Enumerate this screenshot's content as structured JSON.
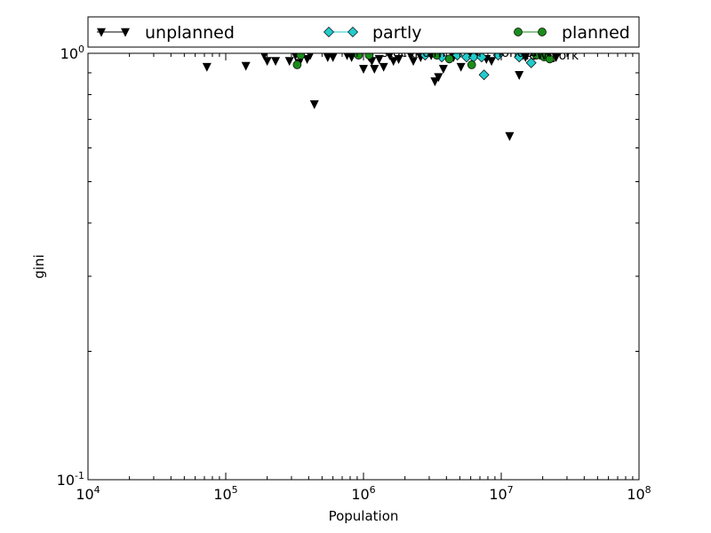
{
  "chart_data": {
    "type": "scatter",
    "title": "",
    "xlabel": "Population",
    "ylabel": "gini",
    "xscale": "log",
    "yscale": "log",
    "xlim": [
      10000,
      100000000
    ],
    "ylim": [
      0.1,
      1.0
    ],
    "grid": false,
    "legend_position": "top",
    "x_ticks": [
      {
        "base": "10",
        "exp": "4"
      },
      {
        "base": "10",
        "exp": "5"
      },
      {
        "base": "10",
        "exp": "6"
      },
      {
        "base": "10",
        "exp": "7"
      },
      {
        "base": "10",
        "exp": "8"
      }
    ],
    "y_ticks": [
      {
        "value": 0.1,
        "base": "10",
        "exp": "-1"
      },
      {
        "value": 1.0,
        "base": "10",
        "exp": "0"
      }
    ],
    "series": [
      {
        "name": "unplanned",
        "marker": "triangle-down",
        "color": "#000000",
        "points": [
          [
            73000,
            0.93
          ],
          [
            140000,
            0.935
          ],
          [
            190000,
            0.99
          ],
          [
            200000,
            0.96
          ],
          [
            230000,
            0.96
          ],
          [
            290000,
            0.96
          ],
          [
            320000,
            0.99
          ],
          [
            340000,
            0.95
          ],
          [
            390000,
            0.97
          ],
          [
            410000,
            0.99
          ],
          [
            440000,
            0.76
          ],
          [
            550000,
            0.98
          ],
          [
            600000,
            0.98
          ],
          [
            760000,
            0.99
          ],
          [
            820000,
            0.98
          ],
          [
            1000000,
            0.92
          ],
          [
            1100000,
            0.98
          ],
          [
            1150000,
            0.96
          ],
          [
            1200000,
            0.92
          ],
          [
            1300000,
            0.97
          ],
          [
            1400000,
            0.93
          ],
          [
            1550000,
            0.99
          ],
          [
            1650000,
            0.96
          ],
          [
            1800000,
            0.97
          ],
          [
            2200000,
            0.99
          ],
          [
            2300000,
            0.96
          ],
          [
            2600000,
            0.98
          ],
          [
            3100000,
            0.99
          ],
          [
            3300000,
            0.86
          ],
          [
            3500000,
            0.88
          ],
          [
            3800000,
            0.92
          ],
          [
            4500000,
            0.98
          ],
          [
            5100000,
            0.93
          ],
          [
            5800000,
            0.99
          ],
          [
            6500000,
            0.99
          ],
          [
            7800000,
            0.97
          ],
          [
            8500000,
            0.96
          ],
          [
            11500000,
            0.64
          ],
          [
            13500000,
            0.89
          ],
          [
            15000000,
            0.98
          ],
          [
            17500000,
            0.99
          ],
          [
            22000000,
            0.99
          ],
          [
            25000000,
            0.98
          ]
        ]
      },
      {
        "name": "partly",
        "marker": "diamond",
        "color": "#22cccc",
        "points": [
          [
            2800000,
            0.99
          ],
          [
            3700000,
            0.98
          ],
          [
            4800000,
            0.99
          ],
          [
            5600000,
            0.98
          ],
          [
            6300000,
            0.98
          ],
          [
            7200000,
            0.98
          ],
          [
            7500000,
            0.89
          ],
          [
            9500000,
            0.99
          ],
          [
            13500000,
            0.98
          ],
          [
            16500000,
            0.95
          ],
          [
            20000000,
            0.99
          ]
        ]
      },
      {
        "name": "planned",
        "marker": "circle",
        "color": "#1a8c1a",
        "points": [
          [
            330000,
            0.94
          ],
          [
            350000,
            0.99
          ],
          [
            920000,
            0.99
          ],
          [
            1100000,
            0.99
          ],
          [
            3400000,
            0.99
          ],
          [
            4200000,
            0.97
          ],
          [
            6100000,
            0.94
          ],
          [
            18000000,
            0.99
          ],
          [
            20500000,
            0.98
          ],
          [
            22500000,
            0.97
          ]
        ]
      }
    ],
    "annotations": [
      {
        "text": "stockholm",
        "x": 1350000,
        "y": 1.0
      },
      {
        "text": "london",
        "x": 9500000,
        "y": 1.0
      },
      {
        "text": "new-york",
        "x": 14000000,
        "y": 0.985
      }
    ]
  }
}
